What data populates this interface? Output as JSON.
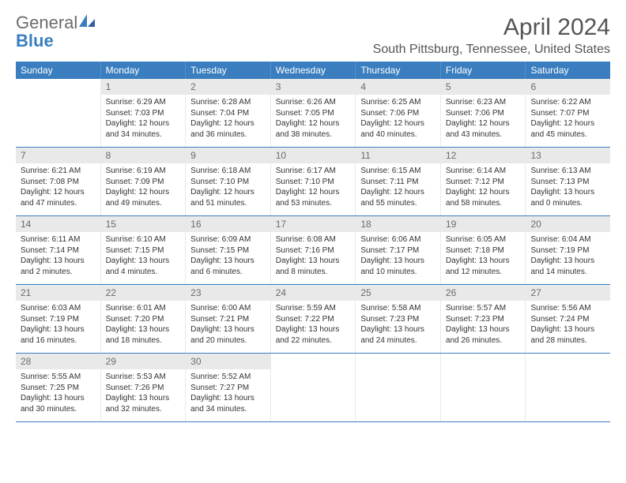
{
  "logo": {
    "general": "General",
    "blue": "Blue"
  },
  "title": "April 2024",
  "location": "South Pittsburg, Tennessee, United States",
  "colors": {
    "header_bg": "#3a7ebf",
    "header_text": "#ffffff",
    "daynum_bg": "#e9e9e9",
    "daynum_text": "#6b6b6b",
    "divider": "#3a7ebf",
    "body_text": "#333333",
    "page_bg": "#ffffff"
  },
  "typography": {
    "title_fontsize": 30,
    "location_fontsize": 16,
    "dayhead_fontsize": 12,
    "daynum_fontsize": 12,
    "cell_fontsize": 10,
    "font_family": "Arial"
  },
  "day_headers": [
    "Sunday",
    "Monday",
    "Tuesday",
    "Wednesday",
    "Thursday",
    "Friday",
    "Saturday"
  ],
  "weeks": [
    [
      {
        "empty": true
      },
      {
        "n": "1",
        "sr": "Sunrise: 6:29 AM",
        "ss": "Sunset: 7:03 PM",
        "d1": "Daylight: 12 hours",
        "d2": "and 34 minutes."
      },
      {
        "n": "2",
        "sr": "Sunrise: 6:28 AM",
        "ss": "Sunset: 7:04 PM",
        "d1": "Daylight: 12 hours",
        "d2": "and 36 minutes."
      },
      {
        "n": "3",
        "sr": "Sunrise: 6:26 AM",
        "ss": "Sunset: 7:05 PM",
        "d1": "Daylight: 12 hours",
        "d2": "and 38 minutes."
      },
      {
        "n": "4",
        "sr": "Sunrise: 6:25 AM",
        "ss": "Sunset: 7:06 PM",
        "d1": "Daylight: 12 hours",
        "d2": "and 40 minutes."
      },
      {
        "n": "5",
        "sr": "Sunrise: 6:23 AM",
        "ss": "Sunset: 7:06 PM",
        "d1": "Daylight: 12 hours",
        "d2": "and 43 minutes."
      },
      {
        "n": "6",
        "sr": "Sunrise: 6:22 AM",
        "ss": "Sunset: 7:07 PM",
        "d1": "Daylight: 12 hours",
        "d2": "and 45 minutes."
      }
    ],
    [
      {
        "n": "7",
        "sr": "Sunrise: 6:21 AM",
        "ss": "Sunset: 7:08 PM",
        "d1": "Daylight: 12 hours",
        "d2": "and 47 minutes."
      },
      {
        "n": "8",
        "sr": "Sunrise: 6:19 AM",
        "ss": "Sunset: 7:09 PM",
        "d1": "Daylight: 12 hours",
        "d2": "and 49 minutes."
      },
      {
        "n": "9",
        "sr": "Sunrise: 6:18 AM",
        "ss": "Sunset: 7:10 PM",
        "d1": "Daylight: 12 hours",
        "d2": "and 51 minutes."
      },
      {
        "n": "10",
        "sr": "Sunrise: 6:17 AM",
        "ss": "Sunset: 7:10 PM",
        "d1": "Daylight: 12 hours",
        "d2": "and 53 minutes."
      },
      {
        "n": "11",
        "sr": "Sunrise: 6:15 AM",
        "ss": "Sunset: 7:11 PM",
        "d1": "Daylight: 12 hours",
        "d2": "and 55 minutes."
      },
      {
        "n": "12",
        "sr": "Sunrise: 6:14 AM",
        "ss": "Sunset: 7:12 PM",
        "d1": "Daylight: 12 hours",
        "d2": "and 58 minutes."
      },
      {
        "n": "13",
        "sr": "Sunrise: 6:13 AM",
        "ss": "Sunset: 7:13 PM",
        "d1": "Daylight: 13 hours",
        "d2": "and 0 minutes."
      }
    ],
    [
      {
        "n": "14",
        "sr": "Sunrise: 6:11 AM",
        "ss": "Sunset: 7:14 PM",
        "d1": "Daylight: 13 hours",
        "d2": "and 2 minutes."
      },
      {
        "n": "15",
        "sr": "Sunrise: 6:10 AM",
        "ss": "Sunset: 7:15 PM",
        "d1": "Daylight: 13 hours",
        "d2": "and 4 minutes."
      },
      {
        "n": "16",
        "sr": "Sunrise: 6:09 AM",
        "ss": "Sunset: 7:15 PM",
        "d1": "Daylight: 13 hours",
        "d2": "and 6 minutes."
      },
      {
        "n": "17",
        "sr": "Sunrise: 6:08 AM",
        "ss": "Sunset: 7:16 PM",
        "d1": "Daylight: 13 hours",
        "d2": "and 8 minutes."
      },
      {
        "n": "18",
        "sr": "Sunrise: 6:06 AM",
        "ss": "Sunset: 7:17 PM",
        "d1": "Daylight: 13 hours",
        "d2": "and 10 minutes."
      },
      {
        "n": "19",
        "sr": "Sunrise: 6:05 AM",
        "ss": "Sunset: 7:18 PM",
        "d1": "Daylight: 13 hours",
        "d2": "and 12 minutes."
      },
      {
        "n": "20",
        "sr": "Sunrise: 6:04 AM",
        "ss": "Sunset: 7:19 PM",
        "d1": "Daylight: 13 hours",
        "d2": "and 14 minutes."
      }
    ],
    [
      {
        "n": "21",
        "sr": "Sunrise: 6:03 AM",
        "ss": "Sunset: 7:19 PM",
        "d1": "Daylight: 13 hours",
        "d2": "and 16 minutes."
      },
      {
        "n": "22",
        "sr": "Sunrise: 6:01 AM",
        "ss": "Sunset: 7:20 PM",
        "d1": "Daylight: 13 hours",
        "d2": "and 18 minutes."
      },
      {
        "n": "23",
        "sr": "Sunrise: 6:00 AM",
        "ss": "Sunset: 7:21 PM",
        "d1": "Daylight: 13 hours",
        "d2": "and 20 minutes."
      },
      {
        "n": "24",
        "sr": "Sunrise: 5:59 AM",
        "ss": "Sunset: 7:22 PM",
        "d1": "Daylight: 13 hours",
        "d2": "and 22 minutes."
      },
      {
        "n": "25",
        "sr": "Sunrise: 5:58 AM",
        "ss": "Sunset: 7:23 PM",
        "d1": "Daylight: 13 hours",
        "d2": "and 24 minutes."
      },
      {
        "n": "26",
        "sr": "Sunrise: 5:57 AM",
        "ss": "Sunset: 7:23 PM",
        "d1": "Daylight: 13 hours",
        "d2": "and 26 minutes."
      },
      {
        "n": "27",
        "sr": "Sunrise: 5:56 AM",
        "ss": "Sunset: 7:24 PM",
        "d1": "Daylight: 13 hours",
        "d2": "and 28 minutes."
      }
    ],
    [
      {
        "n": "28",
        "sr": "Sunrise: 5:55 AM",
        "ss": "Sunset: 7:25 PM",
        "d1": "Daylight: 13 hours",
        "d2": "and 30 minutes."
      },
      {
        "n": "29",
        "sr": "Sunrise: 5:53 AM",
        "ss": "Sunset: 7:26 PM",
        "d1": "Daylight: 13 hours",
        "d2": "and 32 minutes."
      },
      {
        "n": "30",
        "sr": "Sunrise: 5:52 AM",
        "ss": "Sunset: 7:27 PM",
        "d1": "Daylight: 13 hours",
        "d2": "and 34 minutes."
      },
      {
        "empty": true
      },
      {
        "empty": true
      },
      {
        "empty": true
      },
      {
        "empty": true
      }
    ]
  ]
}
